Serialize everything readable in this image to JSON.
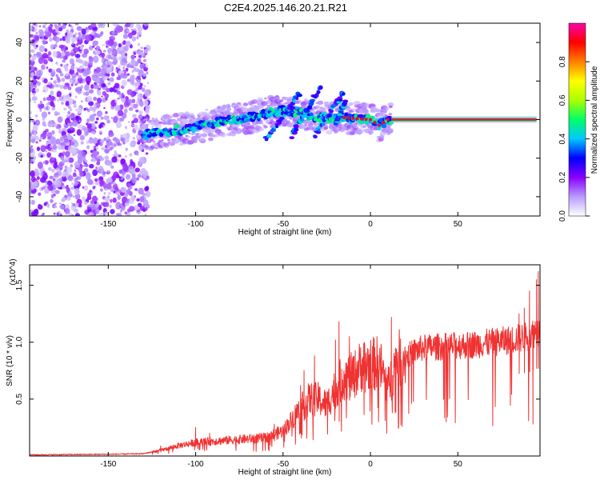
{
  "figure": {
    "title": "C2E4.2025.146.20.21.R21"
  },
  "chart_data": [
    {
      "type": "heatmap",
      "name": "spectrogram",
      "xlabel": "Height of straight line (km)",
      "ylabel": "Frequency (Hz)",
      "xlim": [
        -195,
        97
      ],
      "ylim": [
        -50,
        50
      ],
      "xticks": [
        -150,
        -100,
        -50,
        0,
        50
      ],
      "yticks": [
        -40,
        -20,
        0,
        20,
        40
      ],
      "colorbar": {
        "label": "Normalized spectral amplitude",
        "range": [
          0,
          1
        ],
        "ticks": [
          0.0,
          0.2,
          0.4,
          0.6,
          0.8
        ],
        "colors": [
          "#ffffff",
          "#b89cff",
          "#8a00ff",
          "#0000ff",
          "#00c8ff",
          "#00ff66",
          "#aaff00",
          "#ffff00",
          "#ff8000",
          "#ff0000",
          "#ff00aa"
        ]
      },
      "features": [
        {
          "label": "noise region",
          "x_range": [
            -195,
            -127
          ],
          "f_range": [
            -50,
            50
          ],
          "amplitude": 0.2
        },
        {
          "label": "ridge",
          "points": [
            [
              -130,
              -8
            ],
            [
              -115,
              -6
            ],
            [
              -100,
              -4
            ],
            [
              -90,
              -2
            ],
            [
              -80,
              0
            ],
            [
              -70,
              1
            ],
            [
              -60,
              3
            ],
            [
              -50,
              5
            ],
            [
              -42,
              4
            ],
            [
              -35,
              2
            ],
            [
              -30,
              1
            ],
            [
              -20,
              1
            ],
            [
              -15,
              1
            ],
            [
              0,
              0
            ],
            [
              5,
              -3
            ],
            [
              10,
              0
            ],
            [
              95,
              0
            ]
          ],
          "amplitude": 0.5
        },
        {
          "label": "steady tone",
          "x_range": [
            12,
            95
          ],
          "f": 0,
          "amplitude": 0.95
        }
      ]
    },
    {
      "type": "line",
      "name": "snr",
      "xlabel": "Height of straight line (km)",
      "ylabel": "SNR (10 * v/v)",
      "scale_label": "(x10^4)",
      "xlim": [
        -195,
        97
      ],
      "ylim": [
        0,
        1.68
      ],
      "xticks": [
        -150,
        -100,
        -50,
        0,
        50
      ],
      "yticks": [
        0.5,
        1.0,
        1.5
      ],
      "color": "#f03232",
      "envelope": [
        [
          -195,
          0.01
        ],
        [
          -150,
          0.015
        ],
        [
          -130,
          0.02
        ],
        [
          -120,
          0.05
        ],
        [
          -110,
          0.09
        ],
        [
          -100,
          0.12
        ],
        [
          -90,
          0.13
        ],
        [
          -80,
          0.14
        ],
        [
          -70,
          0.15
        ],
        [
          -60,
          0.16
        ],
        [
          -50,
          0.22
        ],
        [
          -42,
          0.38
        ],
        [
          -35,
          0.5
        ],
        [
          -30,
          0.5
        ],
        [
          -25,
          0.45
        ],
        [
          -20,
          0.6
        ],
        [
          -15,
          0.7
        ],
        [
          -10,
          0.7
        ],
        [
          -5,
          0.8
        ],
        [
          0,
          0.8
        ],
        [
          5,
          0.82
        ],
        [
          10,
          0.6
        ],
        [
          15,
          0.85
        ],
        [
          20,
          0.87
        ],
        [
          25,
          0.92
        ],
        [
          30,
          0.95
        ],
        [
          40,
          0.96
        ],
        [
          50,
          0.97
        ],
        [
          60,
          0.98
        ],
        [
          70,
          1.0
        ],
        [
          80,
          1.02
        ],
        [
          90,
          1.05
        ],
        [
          95,
          1.1
        ]
      ],
      "spikes": [
        [
          -120,
          0.09
        ],
        [
          -100,
          0.25
        ],
        [
          -92,
          0.2
        ],
        [
          -55,
          0.28
        ],
        [
          -40,
          0.62
        ],
        [
          -38,
          0.75
        ],
        [
          -32,
          0.88
        ],
        [
          -20,
          1.02
        ],
        [
          -18,
          1.18
        ],
        [
          -12,
          1.05
        ],
        [
          -3,
          0.72
        ],
        [
          12,
          1.22
        ],
        [
          12.5,
          0.38
        ],
        [
          85,
          1.25
        ],
        [
          88,
          1.3
        ],
        [
          91,
          1.45
        ],
        [
          93,
          0.28
        ],
        [
          95,
          1.55
        ],
        [
          96,
          1.62
        ]
      ]
    }
  ]
}
